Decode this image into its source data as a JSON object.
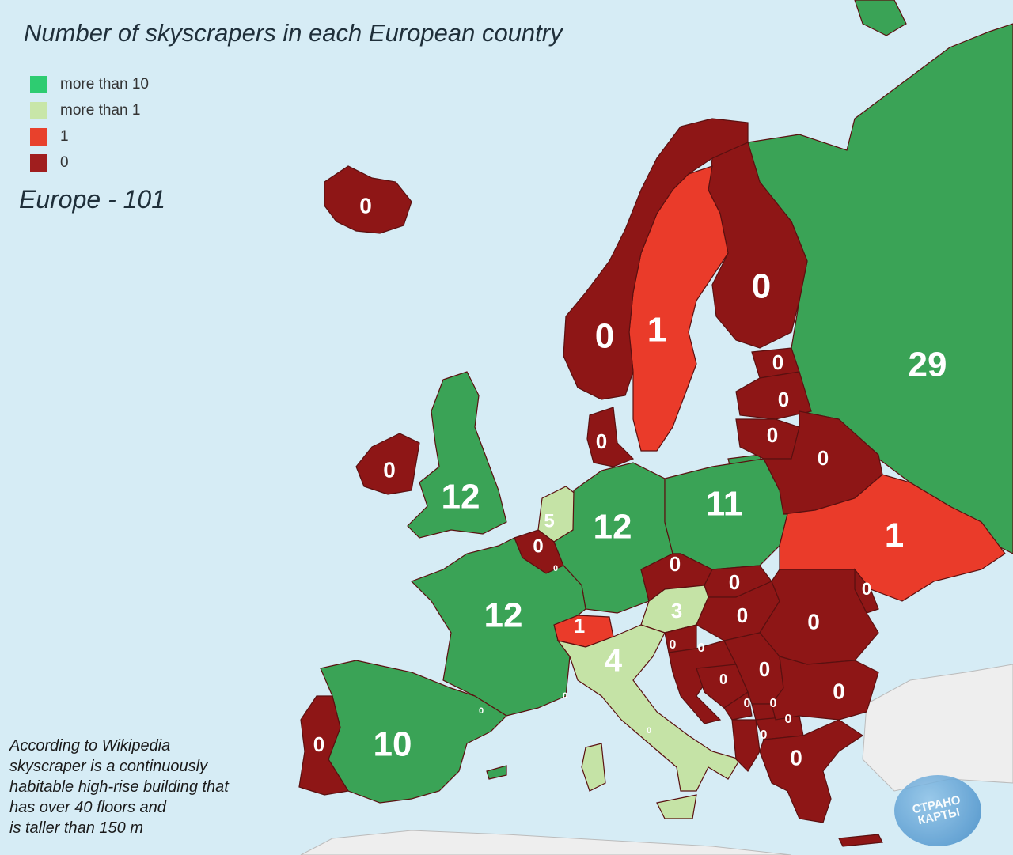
{
  "title": "Number of skyscrapers in each European country",
  "total": "Europe - 101",
  "legend": [
    {
      "label": "more than 10",
      "color": "#2ecc71"
    },
    {
      "label": "more than 1",
      "color": "#c8e6a8"
    },
    {
      "label": "1",
      "color": "#e8412c"
    },
    {
      "label": "0",
      "color": "#a01e1e"
    }
  ],
  "colors": {
    "sea": "#d6ecf5",
    "over10": "#3aa356",
    "over1": "#c5e3a6",
    "one": "#ea3b2a",
    "zero": "#8e1616",
    "other_land": "#eeeeee"
  },
  "note": "According to Wikipedia\nskyscraper is a continuously\nhabitable high-rise building that\nhas over 40 floors and\nis taller than 150 m",
  "watermark": "СТРАНО\nКАРТЫ",
  "countries": {
    "iceland": "0",
    "norway": "0",
    "sweden": "1",
    "finland": "0",
    "russia": "29",
    "estonia": "0",
    "latvia": "0",
    "lithuania": "0",
    "belarus": "0",
    "ukraine": "1",
    "uk": "12",
    "ireland": "0",
    "denmark": "0",
    "netherlands": "5",
    "belgium": "0",
    "germany": "12",
    "poland": "11",
    "czechia": "0",
    "slovakia": "0",
    "austria": "3",
    "hungary": "0",
    "moldova": "0",
    "romania": "0",
    "france": "12",
    "switzerland": "1",
    "italy": "4",
    "slovenia": "0",
    "croatia": "0",
    "bosnia": "0",
    "serbia": "0",
    "montenegro": "0",
    "kosovo": "0",
    "macedonia": "0",
    "albania": "0",
    "bulgaria": "0",
    "greece": "0",
    "spain": "10",
    "portugal": "0",
    "luxembourg": "0",
    "monaco": "0",
    "andorra": "0",
    "san_marino": "0"
  }
}
